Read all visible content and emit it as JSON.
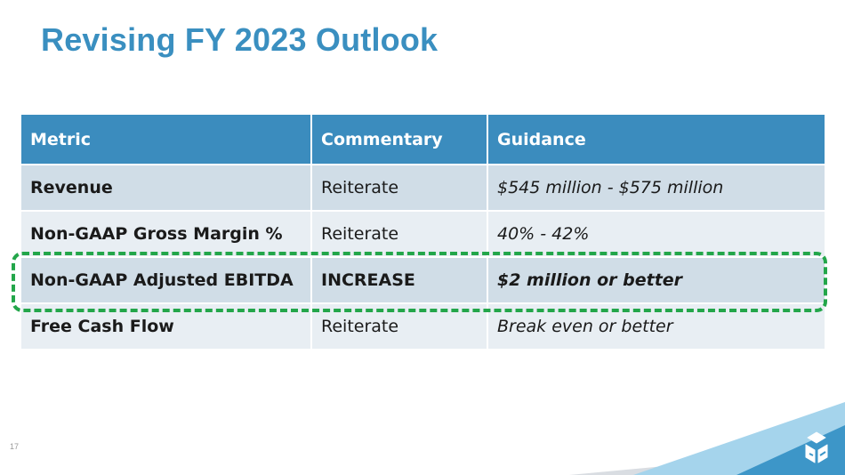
{
  "slide": {
    "title": "Revising FY 2023 Outlook",
    "page_number": "17"
  },
  "table": {
    "headers": [
      "Metric",
      "Commentary",
      "Guidance"
    ],
    "rows": [
      {
        "metric": "Revenue",
        "commentary": "Reiterate",
        "guidance": "$545 million - $575 million"
      },
      {
        "metric": "Non-GAAP Gross Margin %",
        "commentary": "Reiterate",
        "guidance": "40% - 42%"
      },
      {
        "metric": "Non-GAAP Adjusted EBITDA",
        "commentary": "INCREASE",
        "guidance": "$2 million or better"
      },
      {
        "metric": "Free Cash Flow",
        "commentary": "Reiterate",
        "guidance": "Break even or better"
      }
    ]
  },
  "colors": {
    "title": "#3a8fc0",
    "header_bg": "#3b8cbe",
    "row_dark": "#d0dde7",
    "row_light": "#e8eef3",
    "highlight": "#23a64a"
  }
}
